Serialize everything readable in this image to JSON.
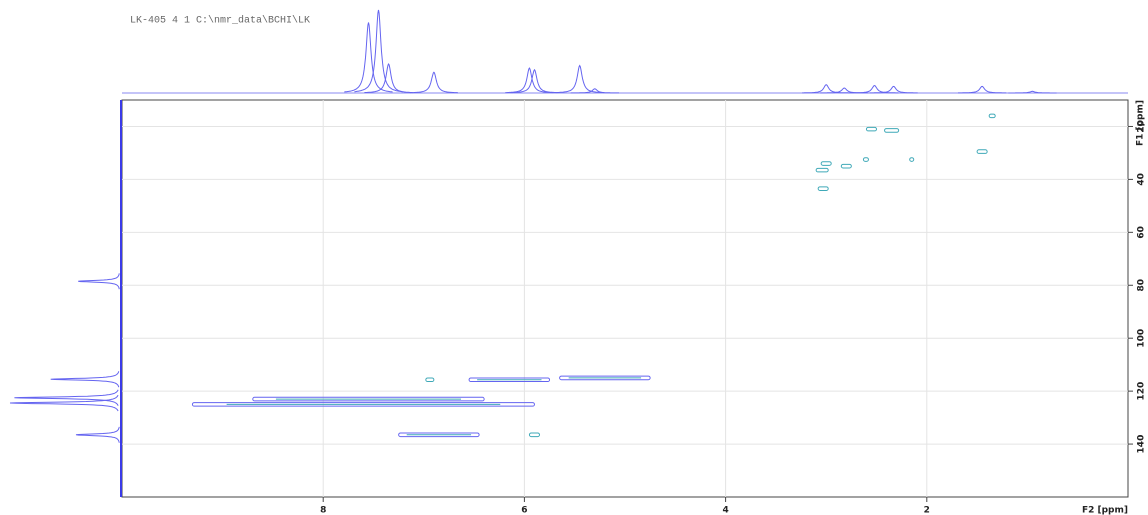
{
  "chart_data": {
    "type": "contour",
    "header": "LK-405   4   1   C:\\nmr_data\\BCHI\\LK",
    "x_label": "F2 [ppm]",
    "y_label": "F1 [ppm]",
    "xlim": [
      10,
      0
    ],
    "ylim": [
      10,
      160
    ],
    "xticks": [
      8,
      6,
      4,
      2
    ],
    "yticks": [
      20,
      40,
      60,
      80,
      100,
      120,
      140
    ],
    "grid": true,
    "peak_color": "#3fa9b8",
    "projection_color": "#6464f0",
    "cross_peaks": [
      {
        "x": [
          1.38,
          1.32
        ],
        "y": 16
      },
      {
        "x": [
          2.6,
          2.5
        ],
        "y": 21
      },
      {
        "x": [
          2.42,
          2.28
        ],
        "y": 21.5
      },
      {
        "x": [
          1.5,
          1.4
        ],
        "y": 29.5
      },
      {
        "x": [
          3.05,
          2.95
        ],
        "y": 34
      },
      {
        "x": [
          2.85,
          2.75
        ],
        "y": 35
      },
      {
        "x": [
          2.63,
          2.58
        ],
        "y": 32.5
      },
      {
        "x": [
          3.1,
          2.98
        ],
        "y": 36.5
      },
      {
        "x": [
          3.08,
          2.98
        ],
        "y": 43.5
      },
      {
        "x": [
          2.17,
          2.13
        ],
        "y": 32.5
      },
      {
        "x": [
          6.98,
          6.9
        ],
        "y": 115.7
      },
      {
        "x": [
          6.55,
          5.75
        ],
        "y": 115.7
      },
      {
        "x": [
          5.65,
          4.75
        ],
        "y": 115
      },
      {
        "x": [
          8.7,
          6.4
        ],
        "y": 123
      },
      {
        "x": [
          9.3,
          5.9
        ],
        "y": 125
      },
      {
        "x": [
          7.25,
          6.45
        ],
        "y": 136.5
      },
      {
        "x": [
          5.95,
          5.85
        ],
        "y": 136.5
      }
    ],
    "f2_peaks": [
      {
        "x": 7.55,
        "height": 85
      },
      {
        "x": 7.45,
        "height": 100
      },
      {
        "x": 7.35,
        "height": 35
      },
      {
        "x": 6.9,
        "height": 25
      },
      {
        "x": 5.95,
        "height": 30
      },
      {
        "x": 5.9,
        "height": 28
      },
      {
        "x": 5.45,
        "height": 33
      },
      {
        "x": 5.3,
        "height": 5
      },
      {
        "x": 3.0,
        "height": 10
      },
      {
        "x": 2.82,
        "height": 6
      },
      {
        "x": 2.52,
        "height": 9
      },
      {
        "x": 2.33,
        "height": 8
      },
      {
        "x": 1.45,
        "height": 8
      },
      {
        "x": 0.95,
        "height": 2
      }
    ],
    "f1_peaks": [
      {
        "y": 78.5,
        "height": 38
      },
      {
        "y": 115.5,
        "height": 63
      },
      {
        "y": 122.5,
        "height": 96
      },
      {
        "y": 124.5,
        "height": 100
      },
      {
        "y": 136.5,
        "height": 40
      }
    ]
  }
}
